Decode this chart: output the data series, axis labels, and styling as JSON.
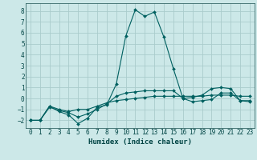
{
  "xlabel": "Humidex (Indice chaleur)",
  "background_color": "#cce8e8",
  "grid_color": "#aacccc",
  "line_color": "#006060",
  "xlim": [
    -0.5,
    23.5
  ],
  "ylim": [
    -2.7,
    8.7
  ],
  "xticks": [
    0,
    1,
    2,
    3,
    4,
    5,
    6,
    7,
    8,
    9,
    10,
    11,
    12,
    13,
    14,
    15,
    16,
    17,
    18,
    19,
    20,
    21,
    22,
    23
  ],
  "yticks": [
    -2,
    -1,
    0,
    1,
    2,
    3,
    4,
    5,
    6,
    7,
    8
  ],
  "line1_x": [
    0,
    1,
    2,
    3,
    4,
    5,
    6,
    7,
    8,
    9,
    10,
    11,
    12,
    13,
    14,
    15,
    16,
    17,
    18,
    19,
    20,
    21,
    22,
    23
  ],
  "line1_y": [
    -2,
    -2,
    -0.7,
    -1.2,
    -1.5,
    -2.3,
    -1.8,
    -0.8,
    -0.6,
    1.3,
    5.7,
    8.1,
    7.5,
    7.9,
    5.6,
    2.7,
    0.0,
    0.1,
    0.3,
    0.9,
    1.0,
    0.9,
    -0.2,
    -0.3
  ],
  "line2_x": [
    0,
    1,
    2,
    3,
    4,
    5,
    6,
    7,
    8,
    9,
    10,
    11,
    12,
    13,
    14,
    15,
    16,
    17,
    18,
    19,
    20,
    21,
    22,
    23
  ],
  "line2_y": [
    -2,
    -2,
    -0.7,
    -1.0,
    -1.2,
    -1.0,
    -1.0,
    -0.7,
    -0.4,
    -0.2,
    -0.1,
    0.0,
    0.1,
    0.2,
    0.2,
    0.2,
    0.2,
    0.2,
    0.2,
    0.3,
    0.3,
    0.3,
    0.2,
    0.2
  ],
  "line3_x": [
    0,
    1,
    2,
    3,
    4,
    5,
    6,
    7,
    8,
    9,
    10,
    11,
    12,
    13,
    14,
    15,
    16,
    17,
    18,
    19,
    20,
    21,
    22,
    23
  ],
  "line3_y": [
    -2,
    -2,
    -0.8,
    -1.1,
    -1.3,
    -1.7,
    -1.4,
    -1.0,
    -0.5,
    0.2,
    0.5,
    0.6,
    0.7,
    0.7,
    0.7,
    0.7,
    0.0,
    -0.3,
    -0.2,
    -0.1,
    0.5,
    0.5,
    -0.2,
    -0.2
  ],
  "xlabel_fontsize": 6.5,
  "tick_fontsize": 5.5
}
